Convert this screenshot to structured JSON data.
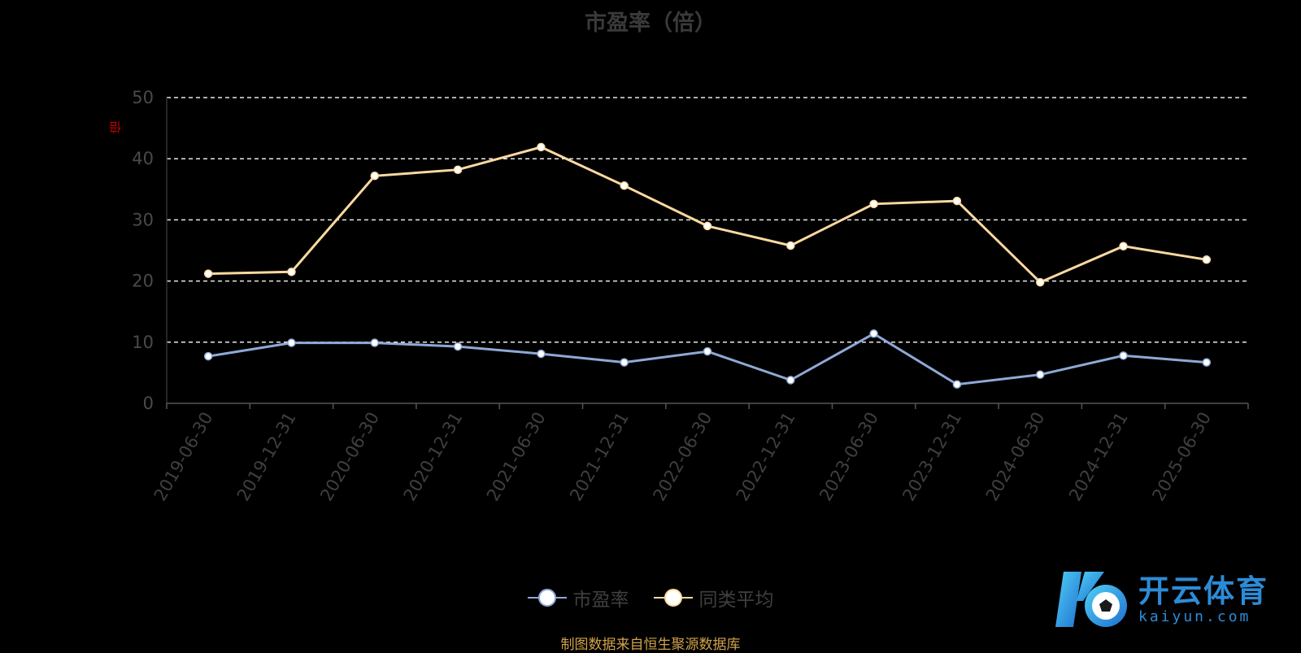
{
  "chart_data": {
    "type": "line",
    "title": "市盈率（倍）",
    "ylabel": "倍",
    "xlabel": "",
    "ylim": [
      0,
      50
    ],
    "yticks": [
      0,
      10,
      20,
      30,
      40,
      50
    ],
    "grid": "horizontal-dashed",
    "legend_position": "bottom",
    "categories": [
      "2019-06-30",
      "2019-12-31",
      "2020-06-30",
      "2020-12-31",
      "2021-06-30",
      "2021-12-31",
      "2022-06-30",
      "2022-12-31",
      "2023-06-30",
      "2023-12-31",
      "2024-06-30",
      "2024-12-31",
      "2025-06-30"
    ],
    "series": [
      {
        "name": "市盈率",
        "color": "#8fa9d6",
        "values": [
          7.7,
          9.9,
          9.9,
          9.3,
          8.1,
          6.7,
          8.5,
          3.8,
          11.4,
          3.1,
          4.7,
          7.8,
          6.7
        ]
      },
      {
        "name": "同类平均",
        "color": "#fcd9a0",
        "values": [
          21.2,
          21.5,
          37.2,
          38.2,
          41.9,
          35.6,
          29.0,
          25.8,
          32.6,
          33.1,
          19.8,
          25.7,
          23.5
        ]
      }
    ]
  },
  "source_note": "制图数据来自恒生聚源数据库",
  "logo": {
    "cn": "开云体育",
    "en": "kaiyun.com"
  }
}
